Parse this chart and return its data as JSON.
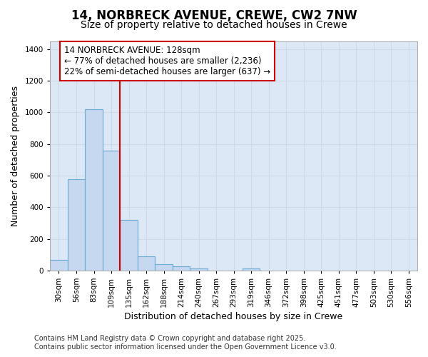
{
  "title_line1": "14, NORBRECK AVENUE, CREWE, CW2 7NW",
  "title_line2": "Size of property relative to detached houses in Crewe",
  "xlabel": "Distribution of detached houses by size in Crewe",
  "ylabel": "Number of detached properties",
  "categories": [
    "30sqm",
    "56sqm",
    "83sqm",
    "109sqm",
    "135sqm",
    "162sqm",
    "188sqm",
    "214sqm",
    "240sqm",
    "267sqm",
    "293sqm",
    "319sqm",
    "346sqm",
    "372sqm",
    "398sqm",
    "425sqm",
    "451sqm",
    "477sqm",
    "503sqm",
    "530sqm",
    "556sqm"
  ],
  "values": [
    65,
    578,
    1020,
    758,
    320,
    90,
    38,
    25,
    15,
    0,
    0,
    15,
    0,
    0,
    0,
    0,
    0,
    0,
    0,
    0,
    0
  ],
  "bar_color": "#c5d8ef",
  "bar_edgecolor": "#6aaad4",
  "annotation_line1": "14 NORBRECK AVENUE: 128sqm",
  "annotation_line2": "← 77% of detached houses are smaller (2,236)",
  "annotation_line3": "22% of semi-detached houses are larger (637) →",
  "annotation_box_facecolor": "#ffffff",
  "annotation_box_edgecolor": "#cc0000",
  "vline_color": "#cc0000",
  "ylim": [
    0,
    1450
  ],
  "yticks": [
    0,
    200,
    400,
    600,
    800,
    1000,
    1200,
    1400
  ],
  "grid_color": "#d0d8e8",
  "plot_bg_color": "#dce8f5",
  "fig_bg_color": "#ffffff",
  "footer_line1": "Contains HM Land Registry data © Crown copyright and database right 2025.",
  "footer_line2": "Contains public sector information licensed under the Open Government Licence v3.0.",
  "title_fontsize": 12,
  "subtitle_fontsize": 10,
  "tick_fontsize": 7.5,
  "xlabel_fontsize": 9,
  "ylabel_fontsize": 9,
  "annotation_fontsize": 8.5,
  "footer_fontsize": 7
}
